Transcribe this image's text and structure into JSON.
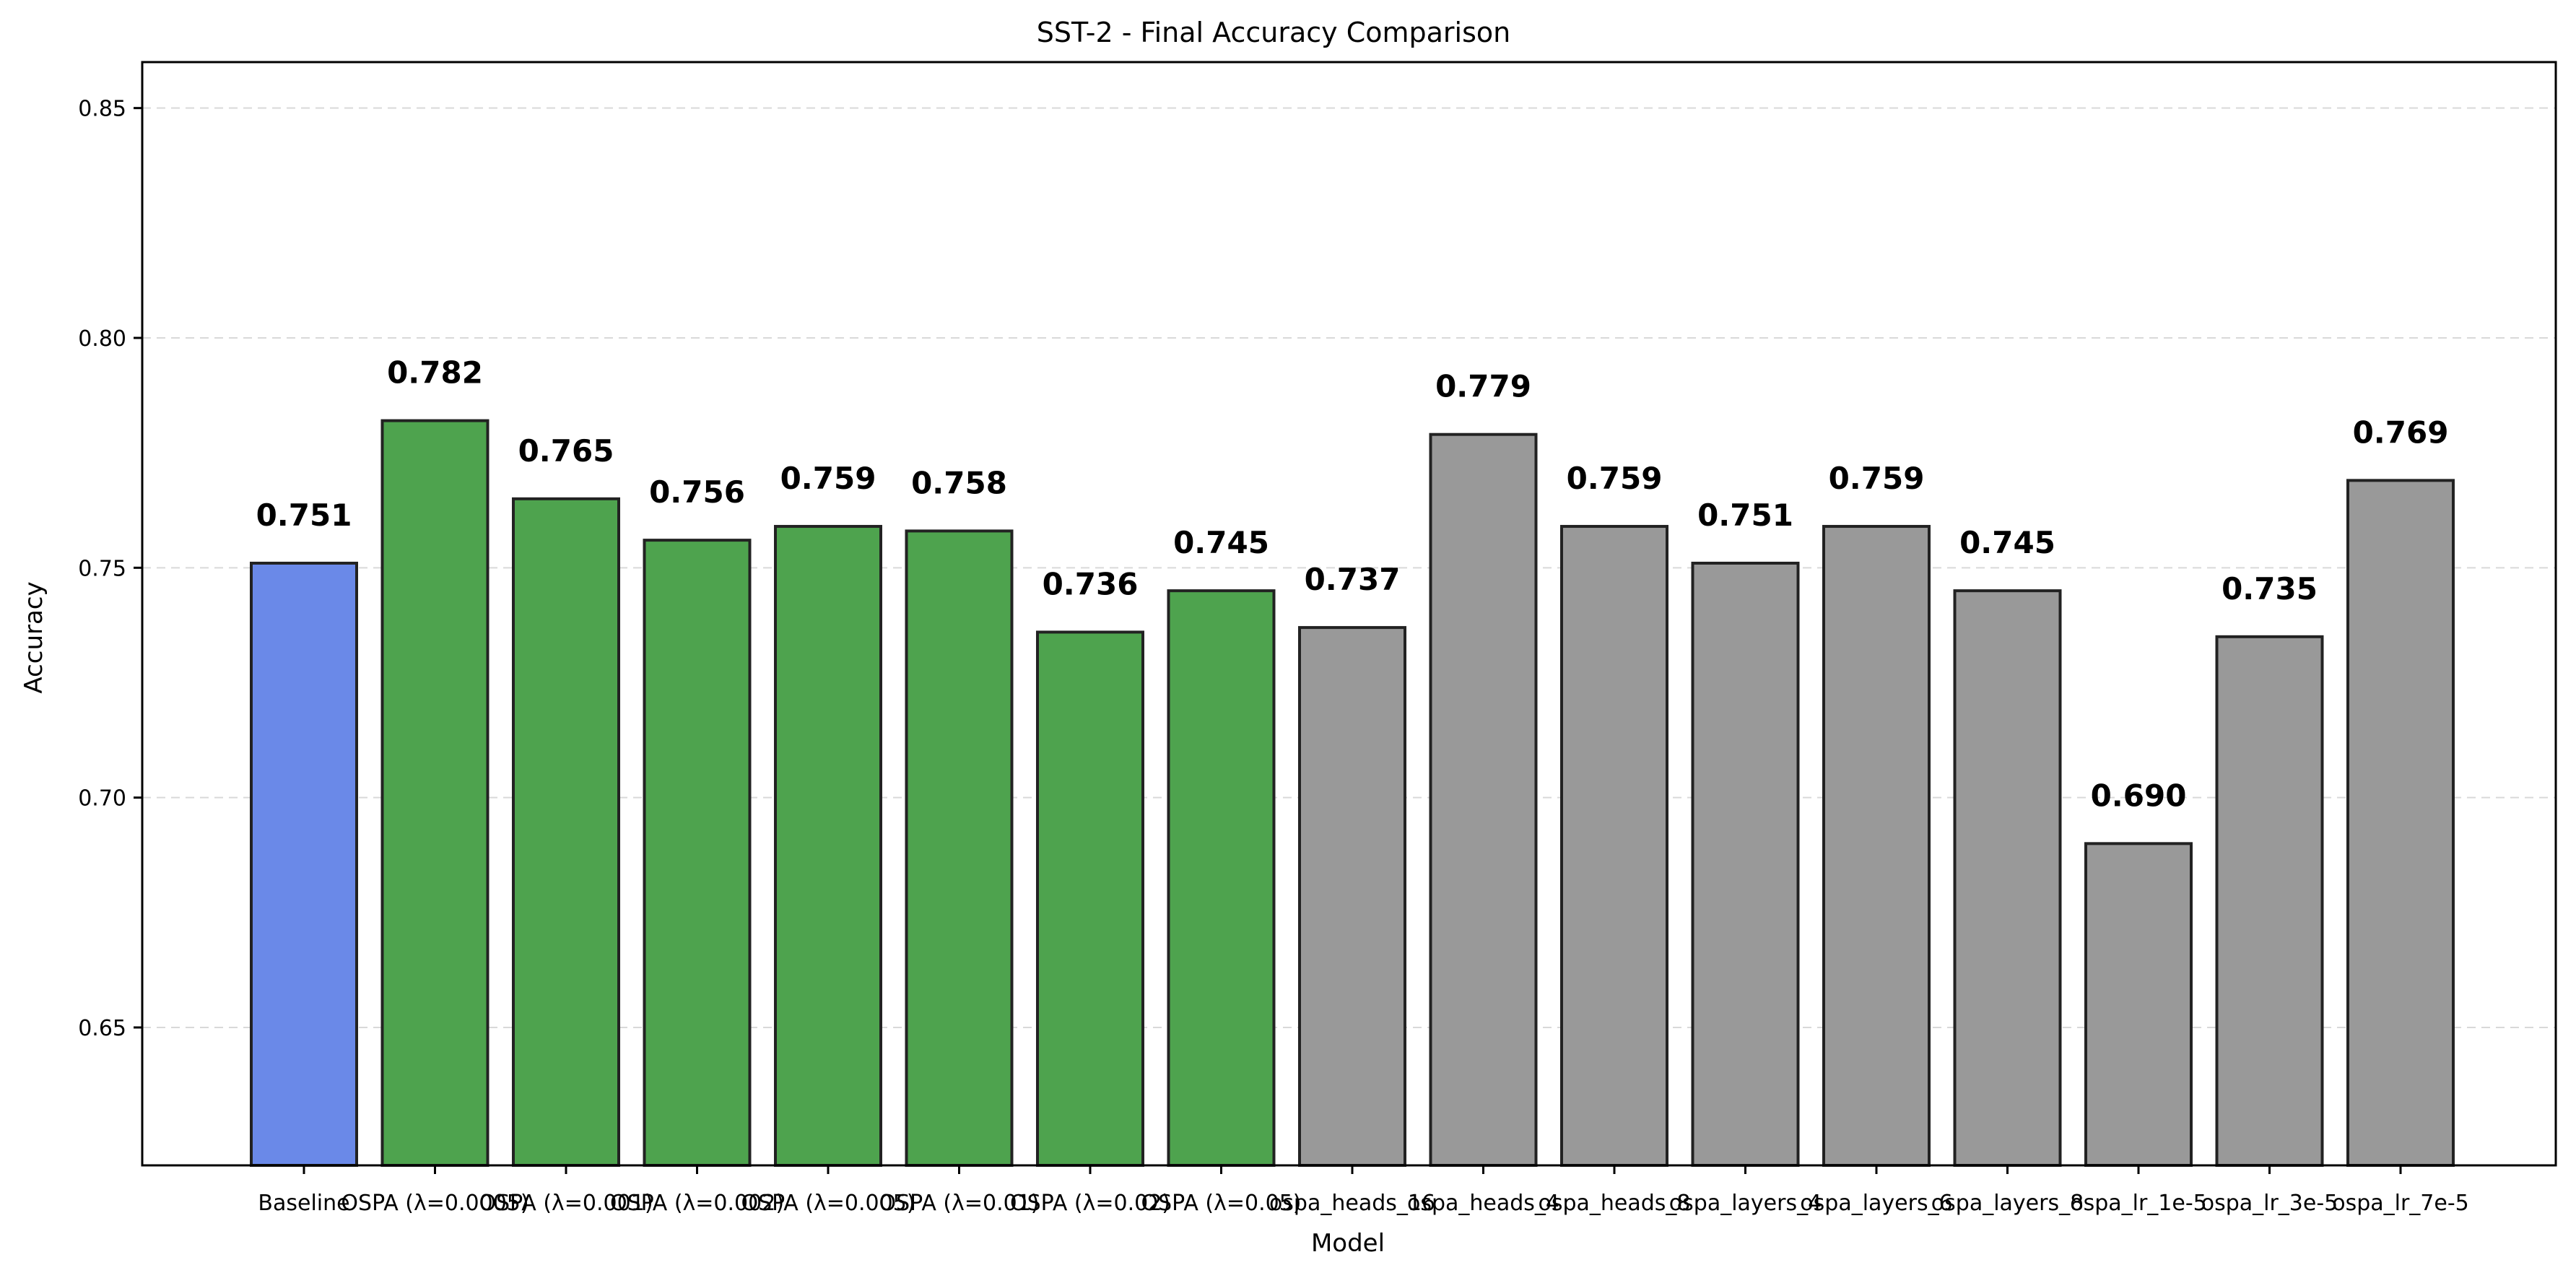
{
  "chart_data": {
    "type": "bar",
    "title": "SST-2 - Final Accuracy Comparison",
    "xlabel": "Model",
    "ylabel": "Accuracy",
    "ylim": [
      0.62,
      0.86
    ],
    "yticks": [
      "0.65",
      "0.70",
      "0.75",
      "0.80",
      "0.85"
    ],
    "ytick_values": [
      0.65,
      0.7,
      0.75,
      0.8,
      0.85
    ],
    "grid": "horizontal-dashed",
    "categories": [
      "Baseline",
      "OSPA (λ=0.0005)",
      "OSPA (λ=0.001)",
      "OSPA (λ=0.002)",
      "OSPA (λ=0.005)",
      "OSPA (λ=0.01)",
      "OSPA (λ=0.02)",
      "OSPA (λ=0.05)",
      "ospa_heads_16",
      "ospa_heads_4",
      "ospa_heads_8",
      "ospa_layers_4",
      "ospa_layers_6",
      "ospa_layers_8",
      "ospa_lr_1e-5",
      "ospa_lr_3e-5",
      "ospa_lr_7e-5"
    ],
    "values": [
      0.751,
      0.782,
      0.765,
      0.756,
      0.759,
      0.758,
      0.736,
      0.745,
      0.737,
      0.779,
      0.759,
      0.751,
      0.759,
      0.745,
      0.69,
      0.735,
      0.769
    ],
    "data_labels": [
      "0.751",
      "0.782",
      "0.765",
      "0.756",
      "0.759",
      "0.758",
      "0.736",
      "0.745",
      "0.737",
      "0.779",
      "0.759",
      "0.751",
      "0.759",
      "0.745",
      "0.690",
      "0.735",
      "0.769"
    ],
    "groups": [
      "baseline",
      "ospa",
      "ospa",
      "ospa",
      "ospa",
      "ospa",
      "ospa",
      "ospa",
      "ablation",
      "ablation",
      "ablation",
      "ablation",
      "ablation",
      "ablation",
      "ablation",
      "ablation",
      "ablation"
    ],
    "colors": {
      "baseline": "#6a89e8",
      "ospa": "#4ea34e",
      "ablation": "#999999"
    }
  }
}
